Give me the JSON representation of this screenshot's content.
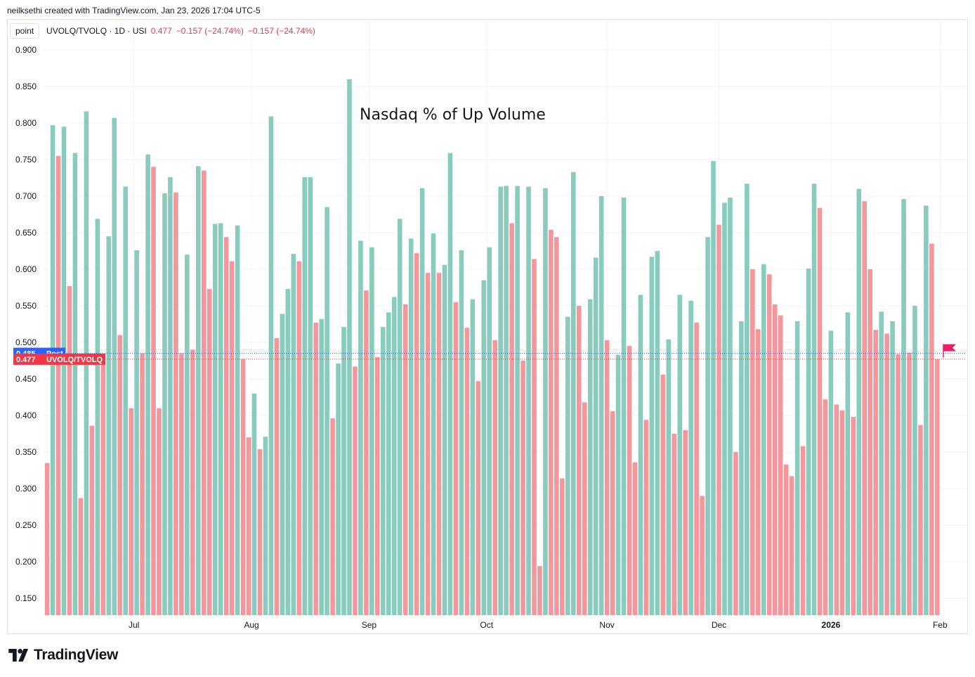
{
  "header": {
    "attribution": "neilksethi created with TradingView.com, Jan 23, 2026 17:04 UTC-5"
  },
  "legend": {
    "scale_button": "point",
    "symbol": "UVOLQ/TVOLQ · 1D · USI",
    "last_value": "0.477",
    "change": "−0.157 (−24.74%)",
    "change2": "−0.157 (−24.74%)"
  },
  "price_labels": {
    "post_value": "0.485",
    "post_name": "Post",
    "last_value": "0.477",
    "last_name": "UVOLQ/TVOLQ"
  },
  "footer": {
    "brand": "TradingView"
  },
  "colors": {
    "up": "#89cbbd",
    "down": "#f3979d",
    "post": "#2962ff",
    "last": "#f23645",
    "flag": "#e91e63"
  },
  "chart_data": {
    "type": "bar",
    "title": "Nasdaq % of Up Volume",
    "series_name": "UVOLQ/TVOLQ",
    "ylim": [
      0.125,
      0.9
    ],
    "y_ticks": [
      "0.900",
      "0.850",
      "0.800",
      "0.750",
      "0.700",
      "0.650",
      "0.600",
      "0.550",
      "0.500",
      "0.450",
      "0.400",
      "0.350",
      "0.300",
      "0.250",
      "0.200",
      "0.150"
    ],
    "x_ticks": [
      {
        "label": "Jul",
        "index": 15.5
      },
      {
        "label": "Aug",
        "index": 36.5
      },
      {
        "label": "Sep",
        "index": 57.5
      },
      {
        "label": "Oct",
        "index": 78.5
      },
      {
        "label": "Nov",
        "index": 100
      },
      {
        "label": "Dec",
        "index": 120
      },
      {
        "label": "2026",
        "index": 140,
        "bold": true
      },
      {
        "label": "Feb",
        "index": 159.5
      }
    ],
    "post_value": 0.485,
    "values": [
      0.335,
      0.797,
      0.755,
      0.795,
      0.577,
      0.759,
      0.287,
      0.816,
      0.386,
      0.669,
      0.48,
      0.645,
      0.807,
      0.51,
      0.713,
      0.41,
      0.626,
      0.485,
      0.757,
      0.74,
      0.41,
      0.704,
      0.726,
      0.705,
      0.485,
      0.62,
      0.49,
      0.741,
      0.735,
      0.573,
      0.662,
      0.663,
      0.644,
      0.611,
      0.66,
      0.477,
      0.37,
      0.43,
      0.354,
      0.371,
      0.809,
      0.506,
      0.539,
      0.573,
      0.621,
      0.611,
      0.726,
      0.726,
      0.527,
      0.532,
      0.685,
      0.396,
      0.471,
      0.521,
      0.86,
      0.467,
      0.639,
      0.571,
      0.63,
      0.48,
      0.521,
      0.541,
      0.562,
      0.669,
      0.552,
      0.642,
      0.622,
      0.711,
      0.595,
      0.649,
      0.595,
      0.606,
      0.759,
      0.555,
      0.626,
      0.52,
      0.559,
      0.447,
      0.585,
      0.63,
      0.503,
      0.713,
      0.714,
      0.663,
      0.714,
      0.475,
      0.713,
      0.614,
      0.194,
      0.711,
      0.654,
      0.644,
      0.314,
      0.535,
      0.733,
      0.55,
      0.418,
      0.559,
      0.616,
      0.7,
      0.503,
      0.406,
      0.483,
      0.698,
      0.495,
      0.336,
      0.565,
      0.394,
      0.617,
      0.625,
      0.456,
      0.504,
      0.375,
      0.565,
      0.38,
      0.557,
      0.527,
      0.29,
      0.644,
      0.748,
      0.661,
      0.691,
      0.698,
      0.35,
      0.529,
      0.717,
      0.6,
      0.518,
      0.607,
      0.593,
      0.552,
      0.537,
      0.333,
      0.317,
      0.529,
      0.358,
      0.601,
      0.717,
      0.684,
      0.422,
      0.516,
      0.415,
      0.407,
      0.541,
      0.398,
      0.71,
      0.693,
      0.6,
      0.517,
      0.542,
      0.512,
      0.529,
      0.484,
      0.696,
      0.486,
      0.55,
      0.387,
      0.687,
      0.635,
      0.477
    ]
  }
}
